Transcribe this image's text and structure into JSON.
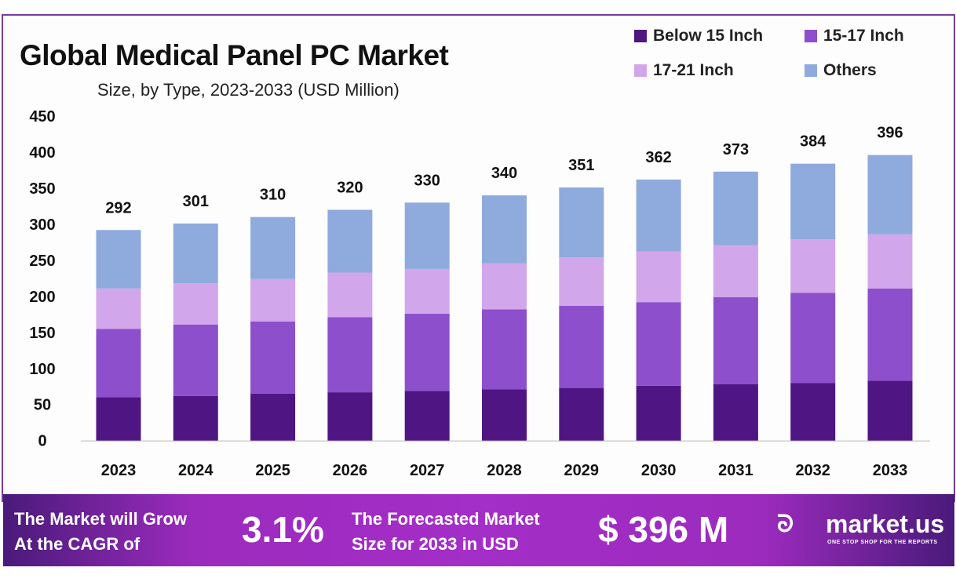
{
  "chart_data": {
    "type": "bar",
    "stacked": true,
    "title": "Global Medical Panel PC Market",
    "subtitle": "Size, by Type, 2023-2033 (USD Million)",
    "categories": [
      "2023",
      "2024",
      "2025",
      "2026",
      "2027",
      "2028",
      "2029",
      "2030",
      "2031",
      "2032",
      "2033"
    ],
    "series": [
      {
        "name": "Below 15 Inch",
        "color": "#4f1683",
        "values": [
          60,
          62,
          65,
          67,
          69,
          71,
          73,
          76,
          78,
          80,
          83
        ]
      },
      {
        "name": "15-17 Inch",
        "color": "#8d4fcc",
        "values": [
          95,
          99,
          100,
          104,
          107,
          111,
          114,
          116,
          121,
          125,
          128
        ]
      },
      {
        "name": "17-21 Inch",
        "color": "#d2a6ea",
        "values": [
          56,
          57,
          59,
          62,
          62,
          64,
          67,
          70,
          72,
          74,
          75
        ]
      },
      {
        "name": "Others",
        "color": "#8faadc",
        "values": [
          81,
          83,
          86,
          87,
          92,
          94,
          97,
          100,
          102,
          105,
          110
        ]
      }
    ],
    "totals": [
      "292",
      "301",
      "310",
      "320",
      "330",
      "340",
      "351",
      "362",
      "373",
      "384",
      "396"
    ],
    "yticks": [
      "0",
      "50",
      "100",
      "150",
      "200",
      "250",
      "300",
      "350",
      "400",
      "450"
    ],
    "ylim": [
      0,
      450
    ],
    "grid": false,
    "legend": "top-right"
  },
  "footer": {
    "cagr_text_1": "The Market will Grow",
    "cagr_text_2": "At the CAGR of",
    "cagr_value": "3.1%",
    "forecast_text_1": "The Forecasted Market",
    "forecast_text_2": "Size for 2033 in USD",
    "forecast_value": "$ 396 M",
    "logo_name": "market.us",
    "logo_tagline": "ONE STOP SHOP FOR THE REPORTS"
  }
}
